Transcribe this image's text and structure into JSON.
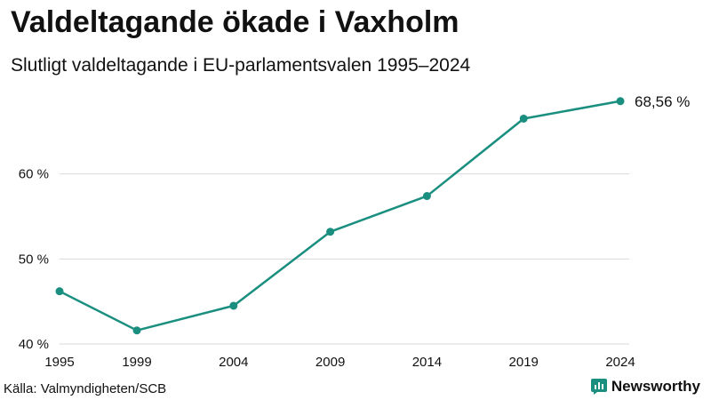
{
  "title": "Valdeltagande ökade i Vaxholm",
  "subtitle": "Slutligt valdeltagande i EU-parlamentsvalen 1995–2024",
  "source": "Källa: Valmyndigheten/SCB",
  "brand": {
    "name": "Newsworthy",
    "icon": "newsworthy-logo-icon",
    "color": "#1a8f80"
  },
  "colors": {
    "line": "#1a8f80",
    "grid": "#d9d9d9",
    "text": "#111111"
  },
  "chart_data": {
    "type": "line",
    "title": "Valdeltagande ökade i Vaxholm",
    "subtitle": "Slutligt valdeltagande i EU-parlamentsvalen 1995–2024",
    "xlabel": "",
    "ylabel": "",
    "x": [
      1995,
      1999,
      2004,
      2009,
      2014,
      2019,
      2024
    ],
    "x_tick_labels": [
      "1995",
      "1999",
      "2004",
      "2009",
      "2014",
      "2019",
      "2024"
    ],
    "xlim": [
      1995,
      2024
    ],
    "series": [
      {
        "name": "Valdeltagande",
        "values": [
          46.2,
          41.6,
          44.5,
          53.2,
          57.4,
          66.5,
          68.56
        ]
      }
    ],
    "ylim": [
      40,
      70
    ],
    "y_ticks": [
      40,
      50,
      60
    ],
    "y_tick_labels": [
      "40 %",
      "50 %",
      "60 %"
    ],
    "grid": true,
    "end_label": "68,56 %"
  }
}
